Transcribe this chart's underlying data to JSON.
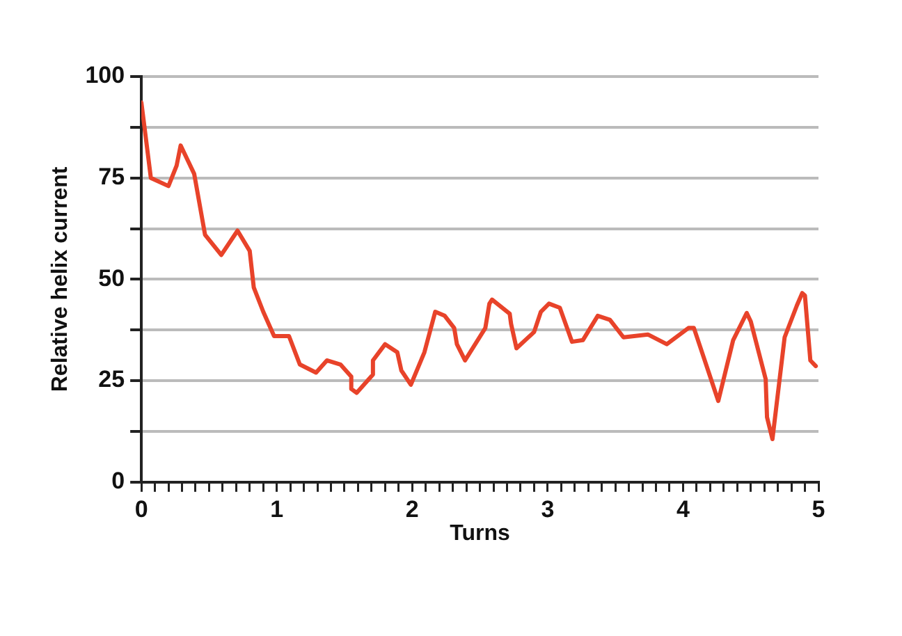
{
  "chart_data": {
    "type": "line",
    "xlabel": "Turns",
    "ylabel": "Relative helix current",
    "xlim": [
      0,
      5
    ],
    "xticks": [
      0,
      {
        "value": 0.1,
        "label": null
      },
      {
        "value": 0.2,
        "label": null
      },
      {
        "value": 0.3,
        "label": null
      },
      {
        "value": 0.4,
        "label": null
      },
      {
        "value": 0.5,
        "label": null
      },
      {
        "value": 0.6,
        "label": null
      },
      {
        "value": 0.7,
        "label": null
      },
      {
        "value": 0.8,
        "label": null
      },
      {
        "value": 0.9,
        "label": null
      },
      1,
      {
        "value": 1.1,
        "label": null
      },
      {
        "value": 1.2,
        "label": null
      },
      {
        "value": 1.3,
        "label": null
      },
      {
        "value": 1.4,
        "label": null
      },
      {
        "value": 1.5,
        "label": null
      },
      {
        "value": 1.6,
        "label": null
      },
      {
        "value": 1.7,
        "label": null
      },
      {
        "value": 1.8,
        "label": null
      },
      {
        "value": 1.9,
        "label": null
      },
      2,
      {
        "value": 2.1,
        "label": null
      },
      {
        "value": 2.2,
        "label": null
      },
      {
        "value": 2.3,
        "label": null
      },
      {
        "value": 2.4,
        "label": null
      },
      {
        "value": 2.5,
        "label": null
      },
      {
        "value": 2.6,
        "label": null
      },
      {
        "value": 2.7,
        "label": null
      },
      {
        "value": 2.8,
        "label": null
      },
      {
        "value": 2.9,
        "label": null
      },
      3,
      {
        "value": 3.1,
        "label": null
      },
      {
        "value": 3.2,
        "label": null
      },
      {
        "value": 3.3,
        "label": null
      },
      {
        "value": 3.4,
        "label": null
      },
      {
        "value": 3.5,
        "label": null
      },
      {
        "value": 3.6,
        "label": null
      },
      {
        "value": 3.7,
        "label": null
      },
      {
        "value": 3.8,
        "label": null
      },
      {
        "value": 3.9,
        "label": null
      },
      4,
      {
        "value": 4.1,
        "label": null
      },
      {
        "value": 4.2,
        "label": null
      },
      {
        "value": 4.3,
        "label": null
      },
      {
        "value": 4.4,
        "label": null
      },
      {
        "value": 4.5,
        "label": null
      },
      {
        "value": 4.6,
        "label": null
      },
      {
        "value": 4.7,
        "label": null
      },
      {
        "value": 4.8,
        "label": null
      },
      {
        "value": 4.9,
        "label": null
      },
      5
    ],
    "ylim": [
      0,
      100
    ],
    "yticks": [
      0,
      {
        "value": 12.5,
        "label": null
      },
      25,
      {
        "value": 37.5,
        "label": null
      },
      50,
      {
        "value": 62.5,
        "label": null
      },
      75,
      {
        "value": 87.5,
        "label": null
      },
      100
    ],
    "grid": "y",
    "legend": false,
    "marker": "none",
    "line_style": "solid",
    "series": [
      {
        "color": "#e8432a",
        "x": [
          0,
          0.07,
          0.2,
          0.26,
          0.29,
          0.39,
          0.47,
          0.59,
          0.71,
          0.8,
          0.83,
          0.9,
          0.98,
          1.09,
          1.17,
          1.29,
          1.37,
          1.47,
          1.55,
          1.55,
          1.59,
          1.71,
          1.71,
          1.8,
          1.89,
          1.92,
          1.99,
          2.09,
          2.17,
          2.24,
          2.31,
          2.33,
          2.39,
          2.54,
          2.57,
          2.59,
          2.72,
          2.73,
          2.77,
          2.9,
          2.95,
          3.01,
          3.09,
          3.18,
          3.26,
          3.37,
          3.46,
          3.56,
          3.74,
          3.88,
          4.04,
          4.08,
          4.26,
          4.37,
          4.47,
          4.5,
          4.61,
          4.62,
          4.66,
          4.75,
          4.84,
          4.88,
          4.9,
          4.94,
          4.98
        ],
        "values": [
          93.6,
          75,
          73,
          78,
          83,
          76,
          61,
          56,
          62,
          57,
          48,
          42,
          36,
          36,
          29,
          27,
          30,
          29,
          26,
          23,
          22,
          26.5,
          30,
          34,
          32,
          27.5,
          24,
          32,
          42,
          41,
          38,
          34,
          30,
          38,
          44,
          45,
          41.5,
          39,
          33,
          37,
          42,
          44,
          43,
          34.6,
          35,
          41,
          40,
          35.7,
          36.4,
          34,
          38,
          38,
          20,
          35,
          41.7,
          39.6,
          25.4,
          16,
          10.6,
          35.7,
          43.5,
          46.6,
          46,
          30,
          28.6
        ]
      }
    ]
  }
}
